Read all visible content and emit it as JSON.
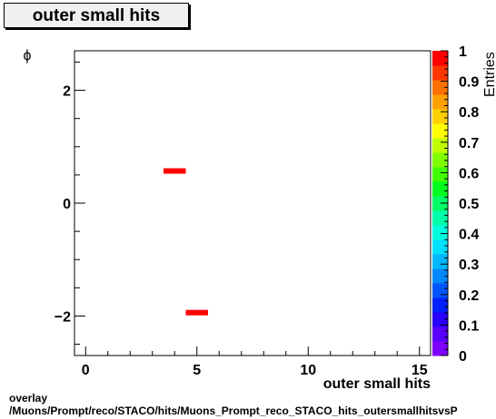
{
  "title": "outer small hits",
  "footer": {
    "line1": "overlay",
    "line2": "/Muons/Prompt/reco/STACO/hits/Muons_Prompt_reco_STACO_hits_outersmallhitsvsP"
  },
  "chart_data": {
    "type": "heatmap",
    "title": "outer small hits",
    "xlabel": "outer small hits",
    "ylabel": "ϕ",
    "zlabel": "Entries",
    "xlim": [
      -0.5,
      15.5
    ],
    "ylim": [
      -2.7,
      2.7
    ],
    "zlim": [
      0,
      1
    ],
    "x_ticks": [
      "0",
      "5",
      "10",
      "15"
    ],
    "y_ticks": [
      "−2",
      "0",
      "2"
    ],
    "z_ticks": [
      "0",
      "0.1",
      "0.2",
      "0.3",
      "0.4",
      "0.5",
      "0.6",
      "0.7",
      "0.8",
      "0.9",
      "1"
    ],
    "cells": [
      {
        "x_low": 3.5,
        "x_high": 4.5,
        "y": 0.57,
        "value": 1
      },
      {
        "x_low": 4.5,
        "x_high": 5.5,
        "y": -1.94,
        "value": 1
      }
    ],
    "palette": [
      "#7f00ff",
      "#5a00ff",
      "#2a00ff",
      "#0020ff",
      "#0055ff",
      "#0088ff",
      "#00b8ff",
      "#00e0ff",
      "#00ffe0",
      "#00ffaa",
      "#00ff66",
      "#00ff20",
      "#40ff00",
      "#80ff00",
      "#c0ff00",
      "#ffff00",
      "#ffd000",
      "#ffa000",
      "#ff7000",
      "#ff3800",
      "#ff0000"
    ],
    "colors": {
      "cell": "#ff0000"
    }
  }
}
